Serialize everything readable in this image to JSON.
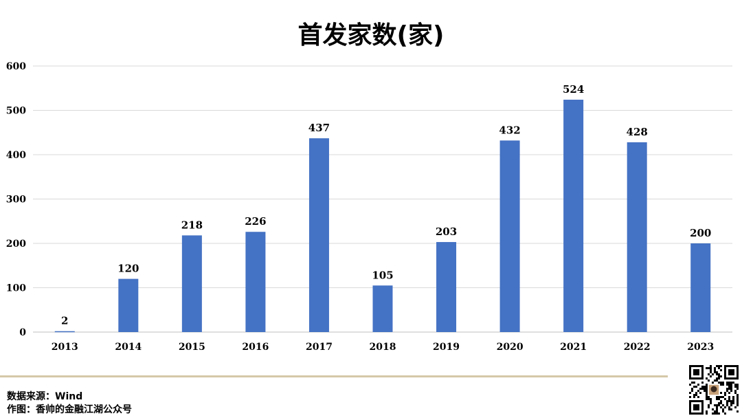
{
  "chart_data": {
    "type": "bar",
    "title": "首发家数(家)",
    "categories": [
      "2013",
      "2014",
      "2015",
      "2016",
      "2017",
      "2018",
      "2019",
      "2020",
      "2021",
      "2022",
      "2023"
    ],
    "values": [
      2,
      120,
      218,
      226,
      437,
      105,
      203,
      432,
      524,
      428,
      200
    ],
    "ylim": [
      0,
      600
    ],
    "yticks": [
      0,
      100,
      200,
      300,
      400,
      500,
      600
    ],
    "grid": true,
    "bar_color": "#4472c4"
  },
  "footer": {
    "source": "数据来源：Wind",
    "author": "作图：香帅的金融江湖公众号"
  },
  "colors": {
    "divider": "#d6c8a8",
    "gridline": "#d9d9d9"
  }
}
